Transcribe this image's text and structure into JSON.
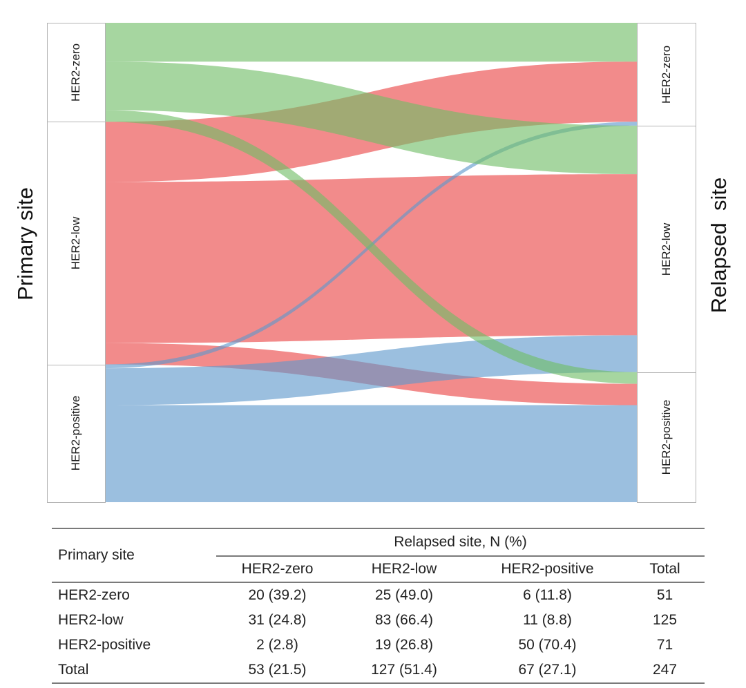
{
  "chart_data": {
    "type": "sankey",
    "left_axis_label": "Primary site",
    "right_axis_label": "Relapsed  site",
    "categories": [
      "HER2-zero",
      "HER2-low",
      "HER2-positive"
    ],
    "flows_matrix": [
      [
        20,
        25,
        6
      ],
      [
        31,
        83,
        11
      ],
      [
        2,
        19,
        50
      ]
    ],
    "flows": [
      {
        "from": "HER2-zero",
        "to": "HER2-zero",
        "value": 20
      },
      {
        "from": "HER2-zero",
        "to": "HER2-low",
        "value": 25
      },
      {
        "from": "HER2-zero",
        "to": "HER2-positive",
        "value": 6
      },
      {
        "from": "HER2-low",
        "to": "HER2-zero",
        "value": 31
      },
      {
        "from": "HER2-low",
        "to": "HER2-low",
        "value": 83
      },
      {
        "from": "HER2-low",
        "to": "HER2-positive",
        "value": 11
      },
      {
        "from": "HER2-positive",
        "to": "HER2-zero",
        "value": 2
      },
      {
        "from": "HER2-positive",
        "to": "HER2-low",
        "value": 19
      },
      {
        "from": "HER2-positive",
        "to": "HER2-positive",
        "value": 50
      }
    ],
    "left_totals": [
      51,
      125,
      71
    ],
    "right_totals": [
      53,
      127,
      67
    ],
    "grand_total": 247,
    "ribbon_colors": [
      "#6fbd66",
      "#ea4444",
      "#5e98cb"
    ],
    "ribbon_blended_colors": [
      "#a6d6a0",
      "#f28b8b",
      "#9bbfdf"
    ],
    "ribbon_opacity": 0.62,
    "draw_order_sources": [
      1,
      2,
      0
    ],
    "node_border_color": "#b3b3b3"
  },
  "table": {
    "row_header": "Primary site",
    "group_header": "Relapsed site, N (%)",
    "columns": [
      "HER2-zero",
      "HER2-low",
      "HER2-positive",
      "Total"
    ],
    "rows": [
      {
        "label": "HER2-zero",
        "cells": [
          "20 (39.2)",
          "25 (49.0)",
          "6 (11.8)",
          "51"
        ]
      },
      {
        "label": "HER2-low",
        "cells": [
          "31 (24.8)",
          "83 (66.4)",
          "11 (8.8)",
          "125"
        ]
      },
      {
        "label": "HER2-positive",
        "cells": [
          "2 (2.8)",
          "19 (26.8)",
          "50 (70.4)",
          "71"
        ]
      },
      {
        "label": "Total",
        "cells": [
          "53 (21.5)",
          "127 (51.4)",
          "67 (27.1)",
          "247"
        ]
      }
    ]
  }
}
